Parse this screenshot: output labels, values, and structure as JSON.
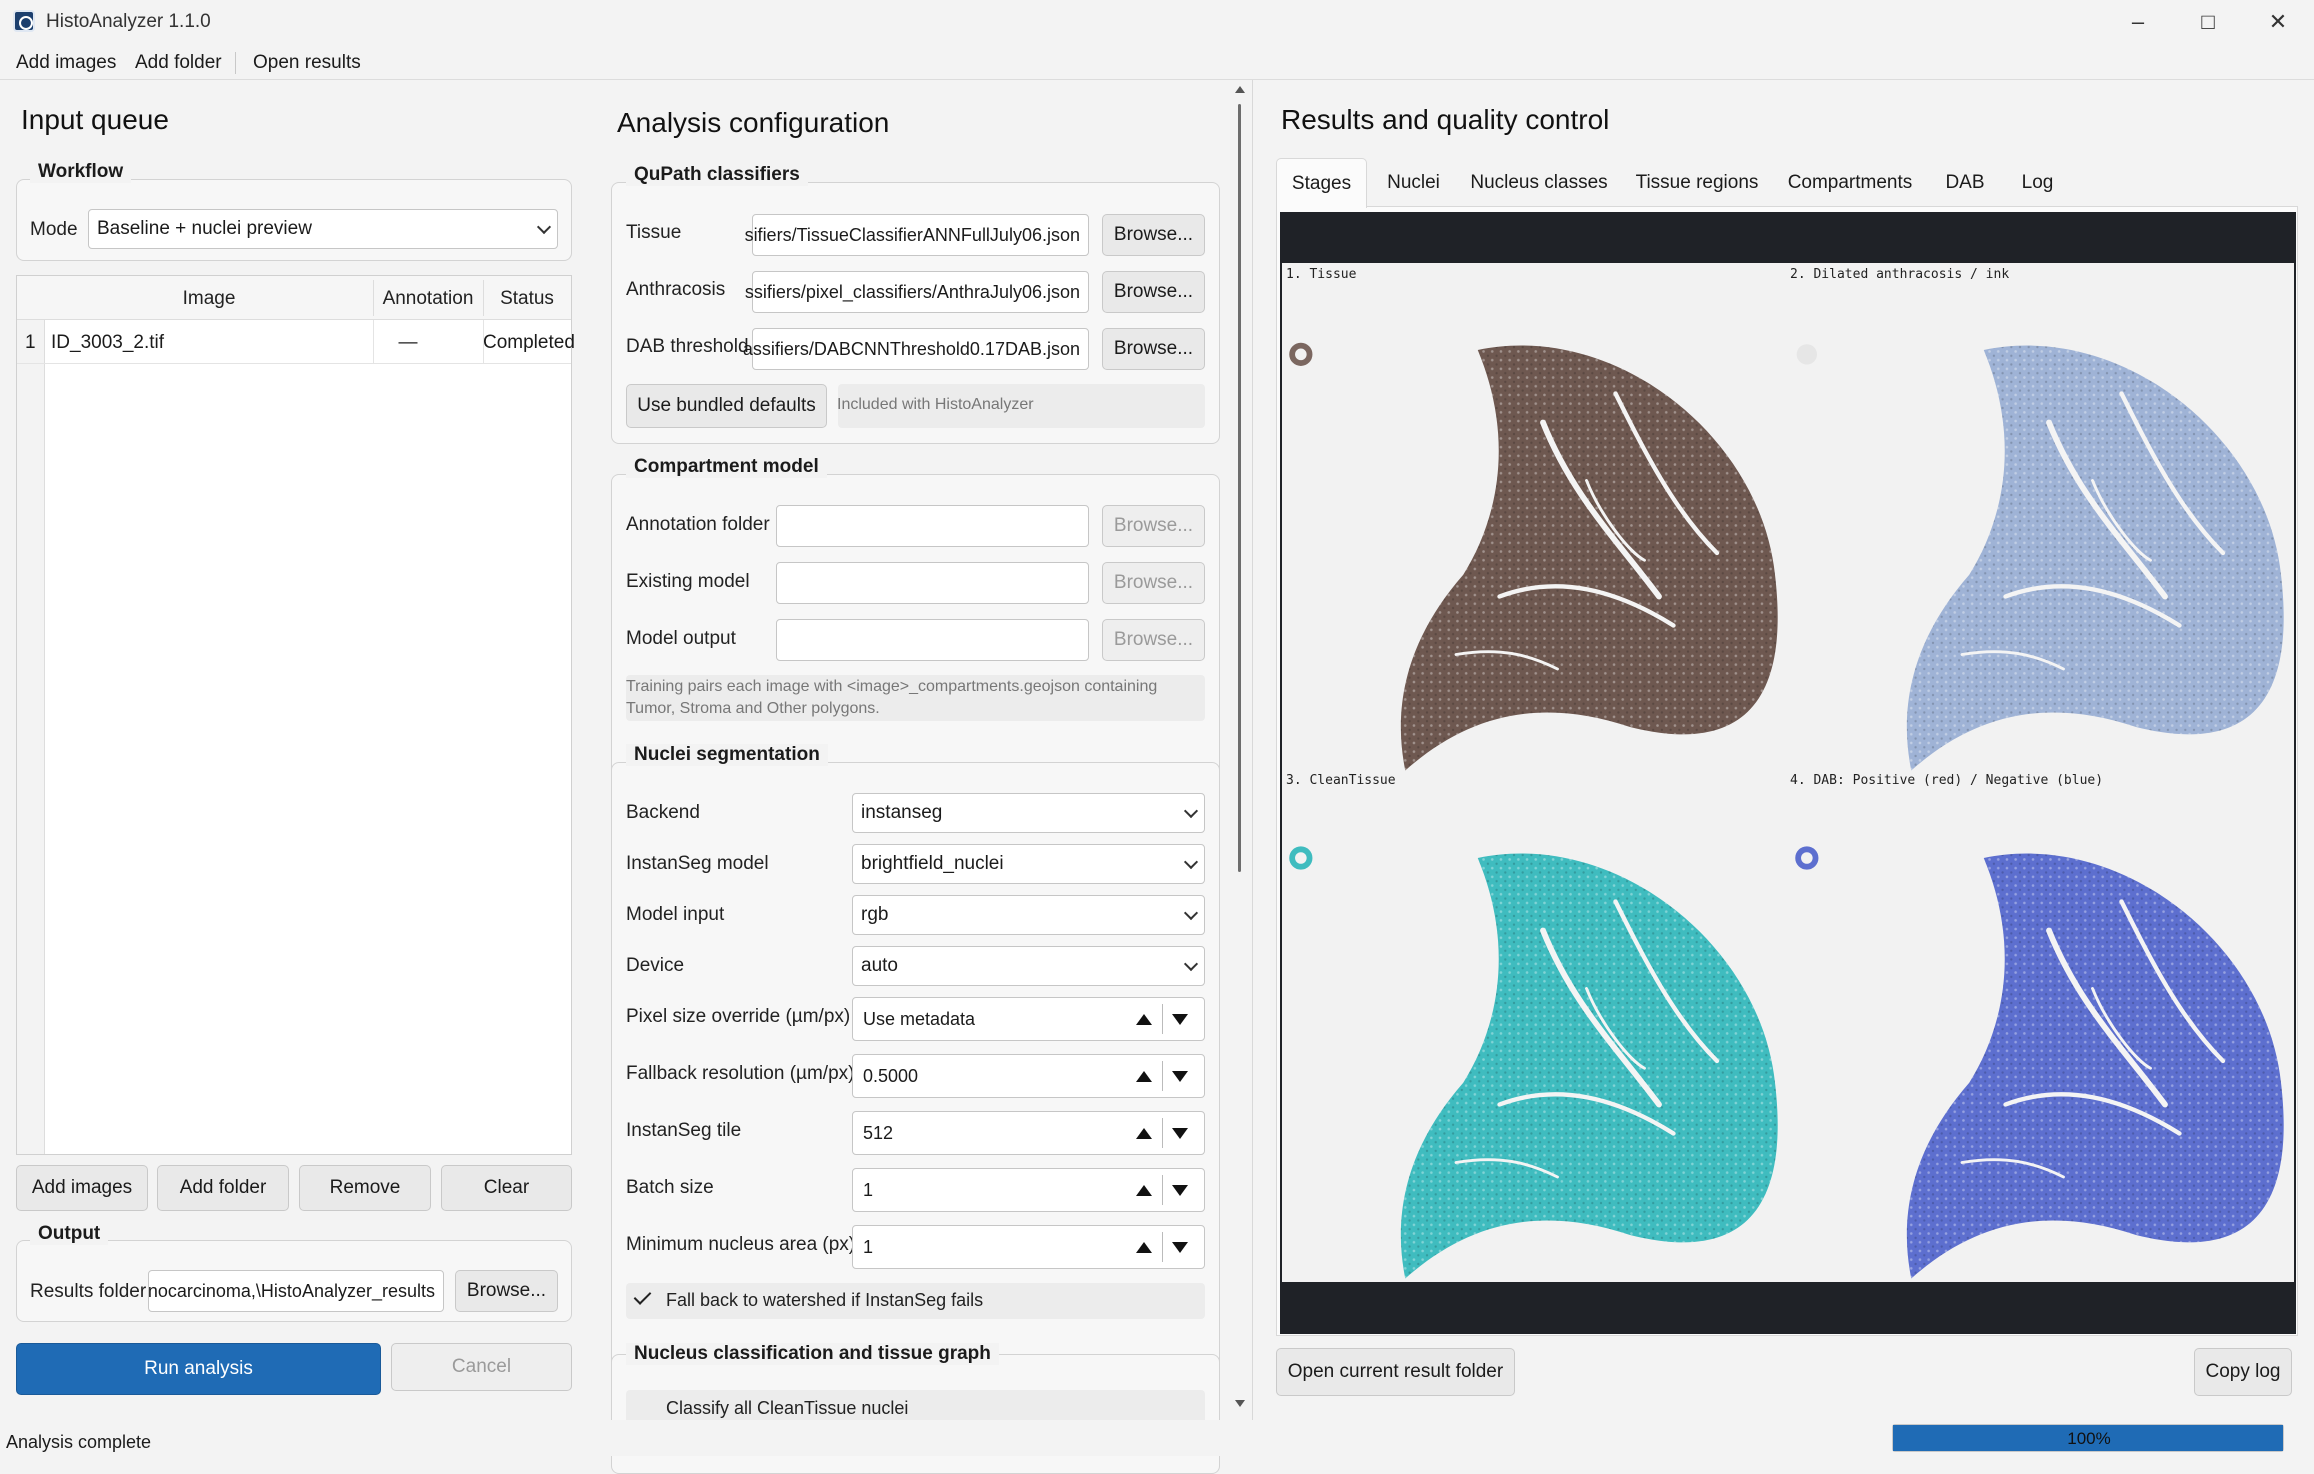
{
  "window": {
    "title": "HistoAnalyzer 1.1.0"
  },
  "menu": {
    "items": [
      "Add images",
      "Add folder",
      "Open results"
    ]
  },
  "input_queue": {
    "title": "Input queue",
    "workflow": {
      "label": "Workflow",
      "mode_label": "Mode",
      "mode_value": "Baseline + nuclei preview"
    },
    "table": {
      "headers": [
        "Image",
        "Annotation",
        "Status"
      ],
      "rows": [
        {
          "num": "1",
          "image": "ID_3003_2.tif",
          "annotation": "—",
          "status": "Completed"
        }
      ]
    },
    "buttons": {
      "add_images": "Add images",
      "add_folder": "Add folder",
      "remove": "Remove",
      "clear": "Clear"
    },
    "output": {
      "label": "Output",
      "results_label": "Results folder",
      "results_value": "nocarcinoma,\\HistoAnalyzer_results",
      "browse": "Browse..."
    },
    "run": "Run analysis",
    "cancel": "Cancel"
  },
  "config": {
    "title": "Analysis configuration",
    "qupath": {
      "label": "QuPath classifiers",
      "tissue_label": "Tissue",
      "tissue_value": "sifiers/TissueClassifierANNFullJuly06.json",
      "anthracosis_label": "Anthracosis",
      "anthracosis_value": "ssifiers/pixel_classifiers/AnthraJuly06.json",
      "dab_label": "DAB threshold",
      "dab_value": "assifiers/DABCNNThreshold0.17DAB.json",
      "browse": "Browse...",
      "bundled_button": "Use bundled defaults",
      "bundled_note": "Included with HistoAnalyzer"
    },
    "compartment": {
      "label": "Compartment model",
      "annotation_label": "Annotation folder",
      "existing_label": "Existing model",
      "output_label": "Model output",
      "browse": "Browse...",
      "note_line1": "Training pairs each image with <image>_compartments.geojson containing",
      "note_line2": "Tumor, Stroma and Other polygons."
    },
    "nuclei": {
      "label": "Nuclei segmentation",
      "backend_label": "Backend",
      "backend_value": "instanseg",
      "model_label": "InstanSeg model",
      "model_value": "brightfield_nuclei",
      "input_label": "Model input",
      "input_value": "rgb",
      "device_label": "Device",
      "device_value": "auto",
      "pixel_label": "Pixel size override (µm/px)",
      "pixel_value": "Use metadata",
      "fallback_label": "Fallback resolution (µm/px)",
      "fallback_value": "0.5000",
      "tile_label": "InstanSeg tile",
      "tile_value": "512",
      "batch_label": "Batch size",
      "batch_value": "1",
      "minarea_label": "Minimum nucleus area (px)",
      "minarea_value": "1",
      "watershed_label": "Fall back to watershed if InstanSeg fails"
    },
    "classification": {
      "label": "Nucleus classification and tissue graph",
      "first_item": "Classify all CleanTissue nuclei"
    }
  },
  "results": {
    "title": "Results and quality control",
    "tabs": [
      "Stages",
      "Nuclei",
      "Nucleus classes",
      "Tissue regions",
      "Compartments",
      "DAB",
      "Log"
    ],
    "active_tab": "Stages",
    "quadrants": [
      {
        "label": "1. Tissue",
        "color": "#6e5850"
      },
      {
        "label": "2. Dilated anthracosis / ink",
        "color": "#9fb3d6"
      },
      {
        "label": "3. CleanTissue",
        "color": "#3fbcbf"
      },
      {
        "label": "4. DAB: Positive (red) / Negative (blue)",
        "color": "#5d6fcf"
      }
    ],
    "open_folder": "Open current result folder",
    "copy_log": "Copy log"
  },
  "status": {
    "text": "Analysis complete",
    "progress_label": "100%",
    "progress": 1.0
  }
}
